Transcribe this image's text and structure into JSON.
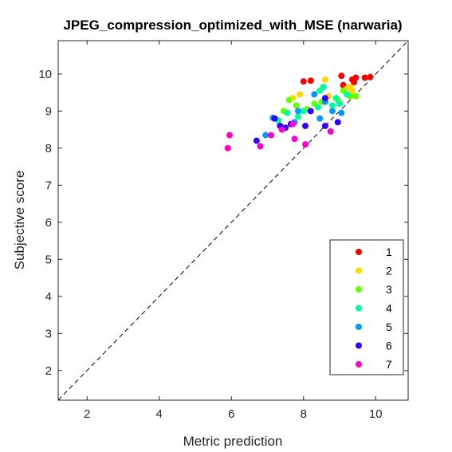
{
  "chart_data": {
    "type": "scatter",
    "title": "JPEG_compression_optimized_with_MSE (narwaria)",
    "xlabel": "Metric prediction",
    "ylabel": "Subjective score",
    "xlim": [
      1.2,
      10.9
    ],
    "ylim": [
      1.2,
      10.9
    ],
    "xticks": [
      2,
      4,
      6,
      8,
      10
    ],
    "yticks": [
      2,
      3,
      4,
      5,
      6,
      7,
      8,
      9,
      10
    ],
    "grid": false,
    "reference_line": "diagonal dashed y = x",
    "legend_position": "bottom-right",
    "series": [
      {
        "name": "1",
        "color": "#ff0000",
        "points": [
          [
            8.0,
            9.8
          ],
          [
            8.2,
            9.82
          ],
          [
            9.05,
            9.95
          ],
          [
            9.1,
            9.7
          ],
          [
            9.35,
            9.85
          ],
          [
            9.45,
            9.9
          ],
          [
            9.7,
            9.9
          ],
          [
            9.85,
            9.92
          ],
          [
            9.4,
            9.78
          ]
        ]
      },
      {
        "name": "2",
        "color": "#ffd700",
        "points": [
          [
            7.7,
            9.35
          ],
          [
            7.9,
            9.45
          ],
          [
            8.6,
            9.85
          ],
          [
            8.7,
            9.4
          ],
          [
            9.2,
            9.6
          ],
          [
            9.3,
            9.65
          ],
          [
            9.35,
            9.55
          ]
        ]
      },
      {
        "name": "3",
        "color": "#66ff00",
        "points": [
          [
            7.45,
            9.0
          ],
          [
            7.6,
            9.3
          ],
          [
            7.8,
            9.15
          ],
          [
            8.1,
            9.05
          ],
          [
            8.3,
            9.2
          ],
          [
            8.5,
            9.25
          ],
          [
            8.95,
            9.3
          ],
          [
            9.1,
            9.55
          ],
          [
            9.3,
            9.4
          ],
          [
            9.45,
            9.4
          ]
        ]
      },
      {
        "name": "4",
        "color": "#00ff99",
        "points": [
          [
            7.3,
            8.75
          ],
          [
            7.55,
            8.95
          ],
          [
            7.85,
            8.85
          ],
          [
            8.0,
            9.0
          ],
          [
            8.4,
            9.1
          ],
          [
            8.55,
            9.65
          ],
          [
            8.8,
            9.15
          ],
          [
            8.9,
            9.35
          ],
          [
            9.0,
            9.2
          ],
          [
            9.2,
            9.45
          ],
          [
            8.45,
            9.55
          ]
        ]
      },
      {
        "name": "5",
        "color": "#0099ff",
        "points": [
          [
            6.95,
            8.35
          ],
          [
            7.15,
            8.82
          ],
          [
            7.4,
            8.55
          ],
          [
            7.75,
            8.7
          ],
          [
            7.85,
            9.0
          ],
          [
            8.3,
            9.45
          ],
          [
            8.45,
            8.8
          ],
          [
            8.8,
            9.0
          ],
          [
            9.05,
            8.95
          ],
          [
            8.6,
            9.25
          ]
        ]
      },
      {
        "name": "6",
        "color": "#3300ff",
        "points": [
          [
            6.7,
            8.2
          ],
          [
            7.2,
            8.8
          ],
          [
            7.35,
            8.6
          ],
          [
            7.5,
            8.55
          ],
          [
            7.65,
            8.65
          ],
          [
            8.05,
            8.6
          ],
          [
            8.2,
            9.0
          ],
          [
            8.6,
            8.6
          ],
          [
            8.95,
            8.7
          ],
          [
            8.6,
            9.35
          ]
        ]
      },
      {
        "name": "7",
        "color": "#ff00cc",
        "points": [
          [
            5.9,
            8.0
          ],
          [
            5.95,
            8.35
          ],
          [
            6.8,
            8.05
          ],
          [
            7.1,
            8.35
          ],
          [
            7.4,
            8.5
          ],
          [
            7.7,
            8.65
          ],
          [
            7.75,
            8.25
          ],
          [
            8.05,
            8.1
          ],
          [
            8.75,
            8.45
          ]
        ]
      }
    ]
  }
}
